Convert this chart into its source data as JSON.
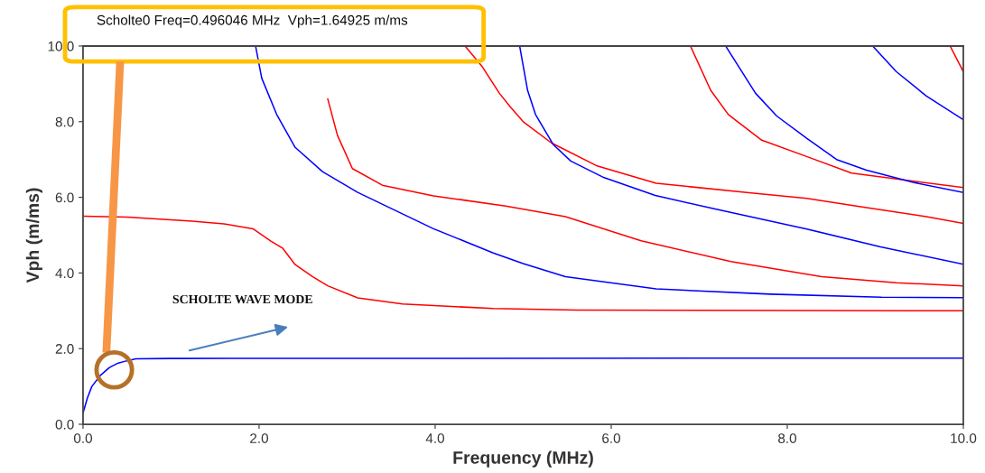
{
  "chart_data": {
    "type": "line",
    "xlabel": "Frequency (MHz)",
    "ylabel": "Vph (m/ms)",
    "xlim": [
      0,
      10
    ],
    "ylim": [
      0,
      10
    ],
    "xticks": [
      {
        "value": 0,
        "label": "0.0"
      },
      {
        "value": 2,
        "label": "2.0"
      },
      {
        "value": 4,
        "label": "4.0"
      },
      {
        "value": 6,
        "label": "6.0"
      },
      {
        "value": 8,
        "label": "8.0"
      },
      {
        "value": 10,
        "label": "10.0"
      }
    ],
    "yticks": [
      {
        "value": 0,
        "label": "0.0"
      },
      {
        "value": 2,
        "label": "2.0"
      },
      {
        "value": 4,
        "label": "4.0"
      },
      {
        "value": 6,
        "label": "6.0"
      },
      {
        "value": 8,
        "label": "8.0"
      },
      {
        "value": 10,
        "label": "10.0"
      }
    ],
    "grid": false,
    "marker": "none",
    "line_style": "solid",
    "annotations": [
      "Scholte0 Freq=0.496046 MHz  Vph=1.64925 m/ms",
      "SCHOLTE WAVE MODE"
    ],
    "series": [
      {
        "color": "#0000ff",
        "x": [
          0,
          0.05,
          0.1,
          0.2,
          0.3,
          0.4,
          0.5,
          0.6,
          1.0,
          10
        ],
        "values": [
          0.3,
          0.7,
          1.0,
          1.3,
          1.5,
          1.62,
          1.68,
          1.73,
          1.74,
          1.75
        ]
      },
      {
        "color": "#ff0000",
        "x": [
          0,
          0.5,
          1.24,
          1.6,
          1.93,
          2.13,
          2.27,
          2.41,
          2.61,
          2.78,
          3.12,
          3.63,
          4.66,
          5.6,
          10
        ],
        "values": [
          5.5,
          5.48,
          5.37,
          5.3,
          5.17,
          4.85,
          4.65,
          4.22,
          3.9,
          3.66,
          3.34,
          3.18,
          3.06,
          3.02,
          3.0
        ]
      },
      {
        "color": "#0000ff",
        "x": [
          1.96,
          2.03,
          2.2,
          2.41,
          2.72,
          3.12,
          3.98,
          4.66,
          5.0,
          5.48,
          6.51,
          7.81,
          9.07,
          10
        ],
        "values": [
          10,
          9.15,
          8.19,
          7.32,
          6.68,
          6.13,
          5.17,
          4.53,
          4.25,
          3.9,
          3.58,
          3.44,
          3.36,
          3.35
        ]
      },
      {
        "color": "#ff0000",
        "x": [
          2.78,
          2.89,
          3.06,
          3.4,
          3.98,
          4.8,
          5.48,
          6.34,
          7.36,
          8.39,
          9.24,
          10
        ],
        "values": [
          8.6,
          7.64,
          6.76,
          6.32,
          6.04,
          5.77,
          5.49,
          4.85,
          4.3,
          3.9,
          3.74,
          3.66
        ]
      },
      {
        "color": "#ff0000",
        "x": [
          4.34,
          4.53,
          4.73,
          4.85,
          5.0,
          5.32,
          5.83,
          6.51,
          7.54,
          8.22,
          8.9,
          9.58,
          10
        ],
        "values": [
          10,
          9.47,
          8.75,
          8.4,
          8.0,
          7.44,
          6.84,
          6.37,
          6.13,
          5.97,
          5.73,
          5.49,
          5.31
        ]
      },
      {
        "color": "#0000ff",
        "x": [
          4.96,
          5.05,
          5.14,
          5.34,
          5.54,
          5.92,
          6.5,
          7.18,
          8.21,
          9.06,
          10
        ],
        "values": [
          10,
          8.83,
          8.19,
          7.4,
          6.96,
          6.52,
          6.05,
          5.69,
          5.17,
          4.69,
          4.23
        ]
      },
      {
        "color": "#ff0000",
        "x": [
          6.9,
          7.13,
          7.33,
          7.71,
          8.22,
          8.73,
          10
        ],
        "values": [
          10,
          8.83,
          8.19,
          7.51,
          7.08,
          6.64,
          6.26
        ]
      },
      {
        "color": "#0000ff",
        "x": [
          7.3,
          7.64,
          7.88,
          8.22,
          8.56,
          8.9,
          9.42,
          10
        ],
        "values": [
          10,
          8.75,
          8.15,
          7.56,
          7.0,
          6.72,
          6.4,
          6.13
        ]
      },
      {
        "color": "#0000ff",
        "x": [
          8.97,
          9.24,
          9.58,
          10
        ],
        "values": [
          10,
          9.32,
          8.68,
          8.05
        ]
      },
      {
        "color": "#ff0000",
        "x": [
          9.85,
          10
        ],
        "values": [
          10,
          9.32
        ]
      }
    ]
  }
}
